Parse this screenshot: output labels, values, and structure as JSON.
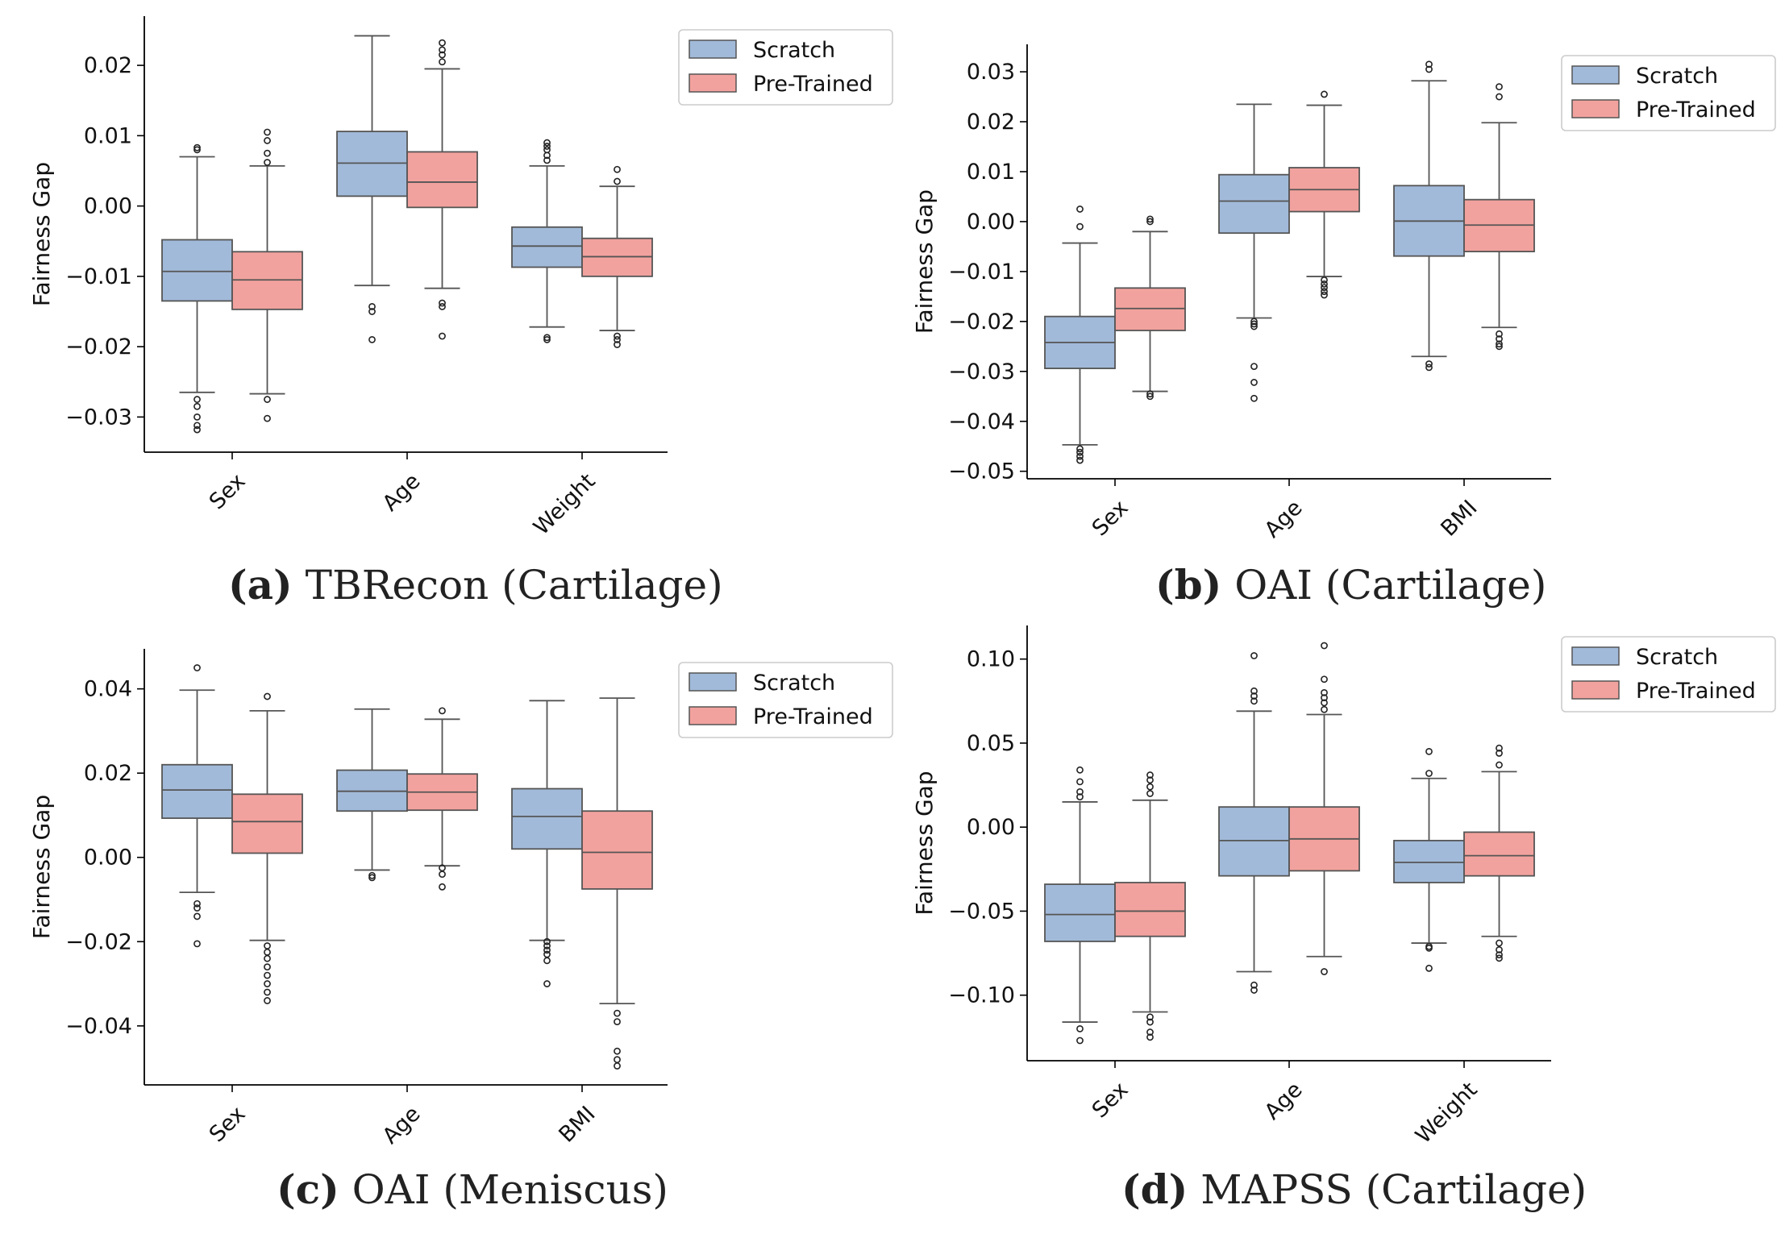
{
  "colors": {
    "scratch": "#a2bad9",
    "pretrained": "#f2a29e",
    "line": "#555555",
    "axis": "#000000"
  },
  "legend": {
    "scratch": "Scratch",
    "pretrained": "Pre-Trained"
  },
  "captions": [
    {
      "letter": "(a)",
      "text": "TBRecon (Cartilage)"
    },
    {
      "letter": "(b)",
      "text": "OAI (Cartilage)"
    },
    {
      "letter": "(c)",
      "text": "OAI (Meniscus)"
    },
    {
      "letter": "(d)",
      "text": "MAPSS (Cartilage)"
    }
  ],
  "chart_data": [
    {
      "type": "box",
      "caption": "(a) TBRecon (Cartilage)",
      "ylabel": "Fairness Gap",
      "ylim": [
        -0.035,
        0.027
      ],
      "yticks": [
        {
          "v": 0.02,
          "label": "0.02"
        },
        {
          "v": 0.01,
          "label": "0.01"
        },
        {
          "v": 0.0,
          "label": "0.00"
        },
        {
          "v": -0.01,
          "label": "−0.01"
        },
        {
          "v": -0.02,
          "label": "−0.02"
        },
        {
          "v": -0.03,
          "label": "−0.03"
        }
      ],
      "categories": [
        "Sex",
        "Age",
        "Weight"
      ],
      "legend_position": "top-right",
      "series": [
        {
          "name": "Scratch",
          "boxes": [
            {
              "whislo": -0.0265,
              "q1": -0.0135,
              "med": -0.0093,
              "q3": -0.0048,
              "whishi": 0.007,
              "fliers": [
                0.008,
                0.0083,
                -0.0275,
                -0.0285,
                -0.03,
                -0.0312,
                -0.0318
              ]
            },
            {
              "whislo": -0.0113,
              "q1": 0.0014,
              "med": 0.0061,
              "q3": 0.0106,
              "whishi": 0.0242,
              "fliers": [
                -0.0143,
                -0.015,
                -0.019
              ]
            },
            {
              "whislo": -0.0172,
              "q1": -0.0087,
              "med": -0.0057,
              "q3": -0.003,
              "whishi": 0.0057,
              "fliers": [
                0.0065,
                0.0072,
                0.008,
                0.0085,
                0.009,
                -0.0187,
                -0.019
              ]
            }
          ]
        },
        {
          "name": "Pre-Trained",
          "boxes": [
            {
              "whislo": -0.0267,
              "q1": -0.0147,
              "med": -0.0105,
              "q3": -0.0065,
              "whishi": 0.0057,
              "fliers": [
                0.0062,
                0.0075,
                0.0093,
                0.0105,
                -0.0275,
                -0.0302
              ]
            },
            {
              "whislo": -0.0117,
              "q1": -0.0002,
              "med": 0.0034,
              "q3": 0.0077,
              "whishi": 0.0195,
              "fliers": [
                0.0205,
                0.0215,
                0.0222,
                0.0232,
                -0.0138,
                -0.0143,
                -0.0185
              ]
            },
            {
              "whislo": -0.0177,
              "q1": -0.01,
              "med": -0.0072,
              "q3": -0.0046,
              "whishi": 0.0028,
              "fliers": [
                0.0035,
                0.0052,
                -0.0185,
                -0.019,
                -0.0197
              ]
            }
          ]
        }
      ]
    },
    {
      "type": "box",
      "caption": "(b) OAI (Cartilage)",
      "ylabel": "Fairness Gap",
      "ylim": [
        -0.0515,
        0.0355
      ],
      "yticks": [
        {
          "v": 0.03,
          "label": "0.03"
        },
        {
          "v": 0.02,
          "label": "0.02"
        },
        {
          "v": 0.01,
          "label": "0.01"
        },
        {
          "v": 0.0,
          "label": "0.00"
        },
        {
          "v": -0.01,
          "label": "−0.01"
        },
        {
          "v": -0.02,
          "label": "−0.02"
        },
        {
          "v": -0.03,
          "label": "−0.03"
        },
        {
          "v": -0.04,
          "label": "−0.04"
        },
        {
          "v": -0.05,
          "label": "−0.05"
        }
      ],
      "categories": [
        "Sex",
        "Age",
        "BMI"
      ],
      "legend_position": "top-right",
      "series": [
        {
          "name": "Scratch",
          "boxes": [
            {
              "whislo": -0.0447,
              "q1": -0.0294,
              "med": -0.0242,
              "q3": -0.019,
              "whishi": -0.0043,
              "fliers": [
                -0.001,
                0.0025,
                -0.0455,
                -0.0462,
                -0.047,
                -0.0478
              ]
            },
            {
              "whislo": -0.0193,
              "q1": -0.0023,
              "med": 0.0041,
              "q3": 0.0094,
              "whishi": 0.0235,
              "fliers": [
                -0.02,
                -0.0205,
                -0.021,
                -0.029,
                -0.0322,
                -0.0354
              ]
            },
            {
              "whislo": -0.027,
              "q1": -0.0069,
              "med": 0.0001,
              "q3": 0.0072,
              "whishi": 0.0282,
              "fliers": [
                0.0305,
                0.0315,
                -0.0285,
                -0.0292
              ]
            }
          ]
        },
        {
          "name": "Pre-Trained",
          "boxes": [
            {
              "whislo": -0.034,
              "q1": -0.0218,
              "med": -0.0174,
              "q3": -0.0133,
              "whishi": -0.002,
              "fliers": [
                0.0,
                0.0005,
                -0.0345,
                -0.035
              ]
            },
            {
              "whislo": -0.011,
              "q1": 0.002,
              "med": 0.0064,
              "q3": 0.0108,
              "whishi": 0.0233,
              "fliers": [
                0.0255,
                -0.0117,
                -0.0125,
                -0.0132,
                -0.014,
                -0.0147
              ]
            },
            {
              "whislo": -0.0212,
              "q1": -0.006,
              "med": -0.0007,
              "q3": 0.0044,
              "whishi": 0.0198,
              "fliers": [
                0.025,
                0.027,
                -0.0225,
                -0.0235,
                -0.0245,
                -0.025
              ]
            }
          ]
        }
      ]
    },
    {
      "type": "box",
      "caption": "(c) OAI (Meniscus)",
      "ylabel": "Fairness Gap",
      "ylim": [
        -0.054,
        0.0495
      ],
      "yticks": [
        {
          "v": 0.04,
          "label": "0.04"
        },
        {
          "v": 0.02,
          "label": "0.02"
        },
        {
          "v": 0.0,
          "label": "0.00"
        },
        {
          "v": -0.02,
          "label": "−0.02"
        },
        {
          "v": -0.04,
          "label": "−0.04"
        }
      ],
      "categories": [
        "Sex",
        "Age",
        "BMI"
      ],
      "legend_position": "top-right",
      "series": [
        {
          "name": "Scratch",
          "boxes": [
            {
              "whislo": -0.0083,
              "q1": 0.0093,
              "med": 0.016,
              "q3": 0.022,
              "whishi": 0.0397,
              "fliers": [
                0.045,
                -0.011,
                -0.012,
                -0.014,
                -0.0205
              ]
            },
            {
              "whislo": -0.003,
              "q1": 0.011,
              "med": 0.0157,
              "q3": 0.0207,
              "whishi": 0.0352,
              "fliers": [
                -0.0043,
                -0.0048
              ]
            },
            {
              "whislo": -0.0197,
              "q1": 0.002,
              "med": 0.0097,
              "q3": 0.0163,
              "whishi": 0.0372,
              "fliers": [
                -0.02,
                -0.021,
                -0.022,
                -0.023,
                -0.0245,
                -0.03
              ]
            }
          ]
        },
        {
          "name": "Pre-Trained",
          "boxes": [
            {
              "whislo": -0.0197,
              "q1": 0.001,
              "med": 0.0085,
              "q3": 0.015,
              "whishi": 0.0348,
              "fliers": [
                0.0382,
                -0.021,
                -0.0225,
                -0.024,
                -0.026,
                -0.028,
                -0.03,
                -0.032,
                -0.034
              ]
            },
            {
              "whislo": -0.002,
              "q1": 0.0112,
              "med": 0.0155,
              "q3": 0.0198,
              "whishi": 0.0328,
              "fliers": [
                0.0348,
                -0.0025,
                -0.004,
                -0.007
              ]
            },
            {
              "whislo": -0.0347,
              "q1": -0.0075,
              "med": 0.0012,
              "q3": 0.011,
              "whishi": 0.0378,
              "fliers": [
                -0.037,
                -0.039,
                -0.046,
                -0.048,
                -0.0495
              ]
            }
          ]
        }
      ]
    },
    {
      "type": "box",
      "caption": "(d) MAPSS (Cartilage)",
      "ylabel": "Fairness Gap",
      "ylim": [
        -0.139,
        0.12
      ],
      "yticks": [
        {
          "v": 0.1,
          "label": "0.10"
        },
        {
          "v": 0.05,
          "label": "0.05"
        },
        {
          "v": 0.0,
          "label": "0.00"
        },
        {
          "v": -0.05,
          "label": "−0.05"
        },
        {
          "v": -0.1,
          "label": "−0.10"
        }
      ],
      "categories": [
        "Sex",
        "Age",
        "Weight"
      ],
      "legend_position": "top-right",
      "series": [
        {
          "name": "Scratch",
          "boxes": [
            {
              "whislo": -0.116,
              "q1": -0.068,
              "med": -0.052,
              "q3": -0.034,
              "whishi": 0.015,
              "fliers": [
                0.018,
                0.021,
                0.027,
                0.034,
                -0.12,
                -0.127
              ]
            },
            {
              "whislo": -0.086,
              "q1": -0.029,
              "med": -0.008,
              "q3": 0.012,
              "whishi": 0.069,
              "fliers": [
                0.075,
                0.078,
                0.081,
                0.102,
                -0.094,
                -0.097
              ]
            },
            {
              "whislo": -0.069,
              "q1": -0.033,
              "med": -0.021,
              "q3": -0.008,
              "whishi": 0.029,
              "fliers": [
                0.032,
                0.045,
                -0.071,
                -0.072,
                -0.084
              ]
            }
          ]
        },
        {
          "name": "Pre-Trained",
          "boxes": [
            {
              "whislo": -0.11,
              "q1": -0.065,
              "med": -0.05,
              "q3": -0.033,
              "whishi": 0.016,
              "fliers": [
                0.02,
                0.024,
                0.028,
                0.031,
                -0.113,
                -0.116,
                -0.122,
                -0.125
              ]
            },
            {
              "whislo": -0.077,
              "q1": -0.026,
              "med": -0.007,
              "q3": 0.012,
              "whishi": 0.067,
              "fliers": [
                0.07,
                0.074,
                0.077,
                0.08,
                0.088,
                0.108,
                -0.086
              ]
            },
            {
              "whislo": -0.065,
              "q1": -0.029,
              "med": -0.017,
              "q3": -0.003,
              "whishi": 0.033,
              "fliers": [
                0.037,
                0.044,
                0.047,
                -0.069,
                -0.073,
                -0.076,
                -0.078
              ]
            }
          ]
        }
      ]
    }
  ]
}
